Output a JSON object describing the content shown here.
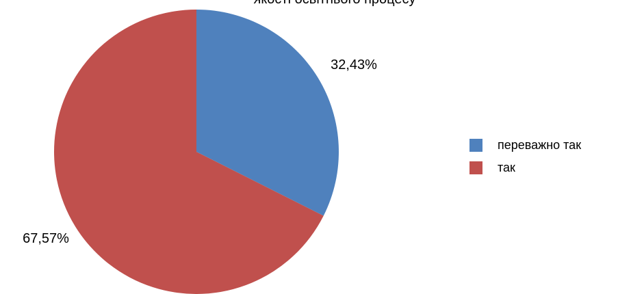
{
  "chart_data": {
    "type": "pie",
    "title": "якості освітнього процесу",
    "slices": [
      {
        "label": "переважно так",
        "value": 32.43,
        "value_label": "32,43%",
        "color": "#4F81BD"
      },
      {
        "label": "так",
        "value": 67.57,
        "value_label": "67,57%",
        "color": "#C0504D"
      }
    ],
    "legend_position": "right",
    "start_angle_deg": 0,
    "direction": "clockwise"
  }
}
